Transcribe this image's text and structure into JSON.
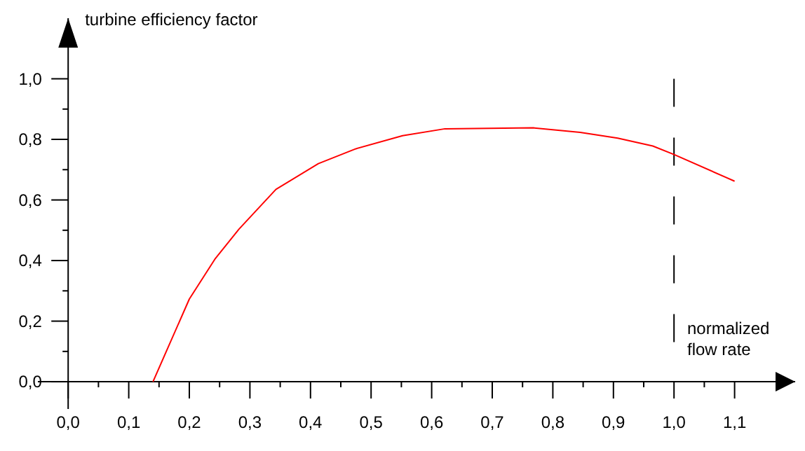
{
  "chart_data": {
    "type": "line",
    "xlabel": "normalized flow rate",
    "ylabel": "turbine efficiency factor",
    "x": [
      0.14,
      0.2,
      0.243,
      0.282,
      0.343,
      0.413,
      0.475,
      0.552,
      0.622,
      0.768,
      0.845,
      0.907,
      0.965,
      1.0,
      1.1
    ],
    "series": [
      {
        "color": "#ff0000",
        "values": [
          0,
          0.273,
          0.407,
          0.504,
          0.635,
          0.72,
          0.769,
          0.812,
          0.835,
          0.838,
          0.823,
          0.804,
          0.778,
          0.75,
          0.662
        ]
      }
    ],
    "xlim": [
      -0.05,
      1.2
    ],
    "ylim": [
      -0.09,
      1.2
    ],
    "xticks": [
      {
        "value": 0,
        "label": "0,0"
      },
      {
        "value": 0.05,
        "label": null
      },
      {
        "value": 0.1,
        "label": "0,1"
      },
      {
        "value": 0.15,
        "label": null
      },
      {
        "value": 0.2,
        "label": "0,2"
      },
      {
        "value": 0.25,
        "label": null
      },
      {
        "value": 0.3,
        "label": "0,3"
      },
      {
        "value": 0.35,
        "label": null
      },
      {
        "value": 0.4,
        "label": "0,4"
      },
      {
        "value": 0.45,
        "label": null
      },
      {
        "value": 0.5,
        "label": "0,5"
      },
      {
        "value": 0.55,
        "label": null
      },
      {
        "value": 0.6,
        "label": "0,6"
      },
      {
        "value": 0.65,
        "label": null
      },
      {
        "value": 0.7,
        "label": "0,7"
      },
      {
        "value": 0.75,
        "label": null
      },
      {
        "value": 0.8,
        "label": "0,8"
      },
      {
        "value": 0.85,
        "label": null
      },
      {
        "value": 0.9,
        "label": "0,9"
      },
      {
        "value": 0.95,
        "label": null
      },
      {
        "value": 1.0,
        "label": "1,0"
      },
      {
        "value": 1.05,
        "label": null
      },
      {
        "value": 1.1,
        "label": "1,1"
      }
    ],
    "yticks": [
      {
        "value": 0,
        "label": "0,0"
      },
      {
        "value": 0.1,
        "label": null
      },
      {
        "value": 0.2,
        "label": "0,2"
      },
      {
        "value": 0.3,
        "label": null
      },
      {
        "value": 0.4,
        "label": "0,4"
      },
      {
        "value": 0.5,
        "label": null
      },
      {
        "value": 0.6,
        "label": "0,6"
      },
      {
        "value": 0.7,
        "label": null
      },
      {
        "value": 0.8,
        "label": "0,8"
      },
      {
        "value": 0.9,
        "label": null
      },
      {
        "value": 1.0,
        "label": "1,0"
      }
    ],
    "ref_lines": [
      {
        "axis": "x",
        "value": 1.0,
        "color": "#000000",
        "line_style": "dashed"
      }
    ],
    "grid": false,
    "marker": "none",
    "line_style": "solid"
  }
}
